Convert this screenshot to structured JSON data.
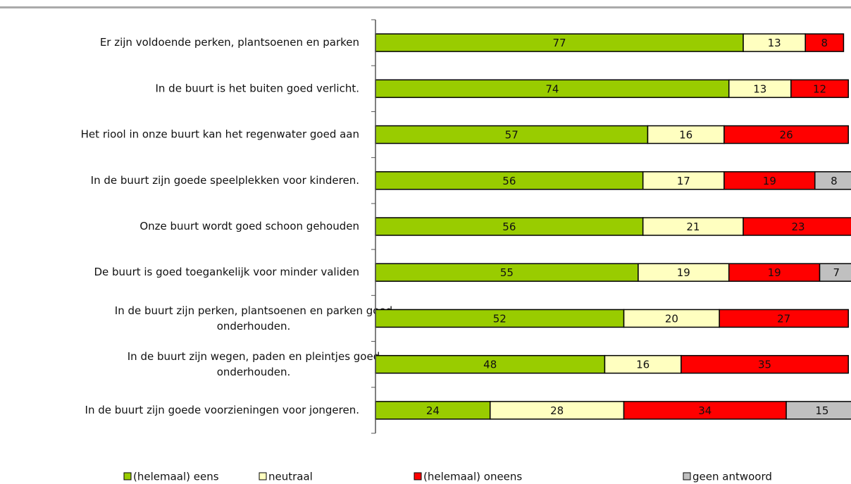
{
  "chart_data": {
    "type": "stacked_barh",
    "categories": [
      "Er zijn voldoende perken, plantsoenen en parken",
      "In de buurt is het buiten goed verlicht.",
      "Het riool in onze buurt kan het regenwater goed aan",
      "In de buurt zijn goede speelplekken voor kinderen.",
      "Onze buurt wordt goed schoon gehouden",
      "De buurt is goed toegankelijk voor minder validen",
      "In de buurt zijn perken, plantsoenen en parken goed\nonderhouden.",
      "In de buurt zijn wegen, paden en pleintjes goed\nonderhouden.",
      "In de buurt zijn goede voorzieningen voor jongeren."
    ],
    "series": [
      {
        "name": "(helemaal) eens",
        "color": "#99cc00",
        "values": [
          77,
          74,
          57,
          56,
          56,
          55,
          52,
          48,
          24
        ]
      },
      {
        "name": "neutraal",
        "color": "#ffffc0",
        "values": [
          13,
          13,
          16,
          17,
          21,
          19,
          20,
          16,
          28
        ]
      },
      {
        "name": "(helemaal) oneens",
        "color": "#ff0000",
        "values": [
          8,
          12,
          26,
          19,
          23,
          19,
          27,
          35,
          34
        ]
      },
      {
        "name": "geen antwoord",
        "color": "#c0c0c0",
        "values": [
          null,
          null,
          null,
          8,
          null,
          7,
          null,
          null,
          15
        ]
      }
    ],
    "xlim": [
      0,
      100
    ],
    "legend": "bottom"
  }
}
